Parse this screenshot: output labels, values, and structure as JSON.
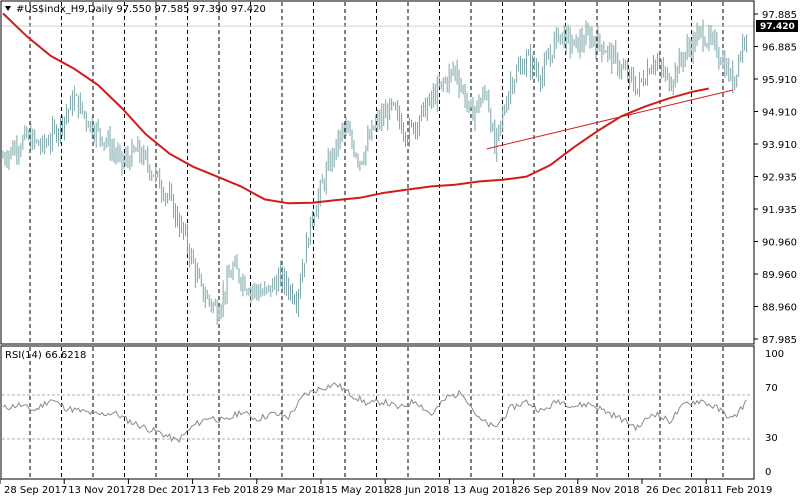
{
  "header": {
    "symbol_line": "#US$indx_H9,Daily  97.550 97.585 97.390 97.420"
  },
  "rsi_panel": {
    "label": "RSI(14) 66.6218",
    "current": 66.6218,
    "levels": [
      70,
      30
    ],
    "scale": [
      "100",
      "70",
      "30",
      "0"
    ]
  },
  "colors": {
    "background": "#ffffff",
    "bars": "#7aa5a8",
    "moving_average": "#d11c1c",
    "trendline": "#d11c1c",
    "rsi_line": "#8a8a8a",
    "grid": "#000000",
    "level_lines": "#b0b0b0"
  },
  "chart_data": {
    "type": "bar",
    "title": "#US$indx_H9,Daily",
    "last_ohlc": {
      "open": 97.55,
      "high": 97.585,
      "low": 97.39,
      "close": 97.42
    },
    "current_price_label": "97.420",
    "ylim": [
      87.6,
      98.05
    ],
    "y_ticks": [
      "97.885",
      "96.885",
      "95.910",
      "94.910",
      "93.910",
      "92.935",
      "91.935",
      "90.960",
      "89.960",
      "88.960",
      "87.985"
    ],
    "x_ticks": [
      "28 Sep 2017",
      "13 Nov 2017",
      "28 Dec 2017",
      "13 Feb 2018",
      "29 Mar 2018",
      "15 May 2018",
      "28 Jun 2018",
      "13 Aug 2018",
      "26 Sep 2018",
      "9 Nov 2018",
      "26 Dec 2018",
      "11 Feb 2019"
    ],
    "price_path": [
      [
        0,
        93.3
      ],
      [
        3,
        93.9
      ],
      [
        5,
        93.6
      ],
      [
        7,
        94.2
      ],
      [
        9,
        95.1
      ],
      [
        11,
        94.3
      ],
      [
        13,
        93.8
      ],
      [
        15,
        93.1
      ],
      [
        17,
        93.5
      ],
      [
        19,
        92.8
      ],
      [
        21,
        92.0
      ],
      [
        23,
        90.8
      ],
      [
        25,
        89.2
      ],
      [
        27,
        88.6
      ],
      [
        29,
        89.9
      ],
      [
        31,
        89.3
      ],
      [
        33,
        89.1
      ],
      [
        35,
        89.6
      ],
      [
        37,
        89.0
      ],
      [
        39,
        91.5
      ],
      [
        41,
        93.0
      ],
      [
        43,
        94.2
      ],
      [
        45,
        93.2
      ],
      [
        47,
        94.3
      ],
      [
        49,
        94.8
      ],
      [
        51,
        94.0
      ],
      [
        53,
        94.7
      ],
      [
        55,
        95.4
      ],
      [
        57,
        96.0
      ],
      [
        59,
        94.6
      ],
      [
        61,
        95.3
      ],
      [
        62,
        93.5
      ],
      [
        64,
        95.6
      ],
      [
        66,
        96.3
      ],
      [
        68,
        95.8
      ],
      [
        70,
        97.1
      ],
      [
        72,
        96.7
      ],
      [
        74,
        97.0
      ],
      [
        76,
        96.6
      ],
      [
        78,
        96.0
      ],
      [
        80,
        95.4
      ],
      [
        82,
        96.3
      ],
      [
        84,
        95.6
      ],
      [
        86,
        96.5
      ],
      [
        88,
        97.1
      ],
      [
        90,
        96.6
      ],
      [
        92,
        95.6
      ],
      [
        94,
        97.5
      ]
    ],
    "series": [
      {
        "type": "line",
        "points": [
          [
            0,
            97.7
          ],
          [
            3,
            97.0
          ],
          [
            6,
            96.4
          ],
          [
            9,
            96.0
          ],
          [
            12,
            95.5
          ],
          [
            15,
            94.8
          ],
          [
            18,
            94.0
          ],
          [
            21,
            93.4
          ],
          [
            24,
            93.0
          ],
          [
            27,
            92.7
          ],
          [
            30,
            92.4
          ],
          [
            33,
            92.0
          ],
          [
            36,
            91.88
          ],
          [
            39,
            91.9
          ],
          [
            42,
            91.98
          ],
          [
            45,
            92.05
          ],
          [
            48,
            92.2
          ],
          [
            51,
            92.3
          ],
          [
            54,
            92.4
          ],
          [
            57,
            92.45
          ],
          [
            60,
            92.55
          ],
          [
            63,
            92.6
          ],
          [
            66,
            92.7
          ],
          [
            69,
            93.05
          ],
          [
            72,
            93.6
          ],
          [
            75,
            94.1
          ],
          [
            78,
            94.55
          ],
          [
            81,
            94.85
          ],
          [
            84,
            95.1
          ],
          [
            87,
            95.3
          ],
          [
            89,
            95.4
          ]
        ]
      },
      {
        "type": "trendline",
        "points": [
          [
            61,
            93.55
          ],
          [
            92,
            95.35
          ]
        ]
      }
    ],
    "rsi_values": [
      [
        0,
        58
      ],
      [
        2,
        61
      ],
      [
        4,
        56
      ],
      [
        6,
        66
      ],
      [
        8,
        58
      ],
      [
        10,
        55
      ],
      [
        12,
        52
      ],
      [
        14,
        54
      ],
      [
        16,
        46
      ],
      [
        18,
        40
      ],
      [
        20,
        35
      ],
      [
        22,
        28
      ],
      [
        24,
        42
      ],
      [
        26,
        50
      ],
      [
        28,
        46
      ],
      [
        30,
        55
      ],
      [
        32,
        48
      ],
      [
        34,
        53
      ],
      [
        36,
        50
      ],
      [
        38,
        70
      ],
      [
        40,
        76
      ],
      [
        42,
        80
      ],
      [
        44,
        70
      ],
      [
        46,
        62
      ],
      [
        48,
        64
      ],
      [
        50,
        58
      ],
      [
        52,
        65
      ],
      [
        54,
        52
      ],
      [
        56,
        68
      ],
      [
        58,
        72
      ],
      [
        60,
        48
      ],
      [
        62,
        40
      ],
      [
        64,
        58
      ],
      [
        66,
        64
      ],
      [
        68,
        55
      ],
      [
        70,
        65
      ],
      [
        72,
        60
      ],
      [
        74,
        62
      ],
      [
        76,
        55
      ],
      [
        78,
        48
      ],
      [
        80,
        40
      ],
      [
        82,
        54
      ],
      [
        84,
        46
      ],
      [
        86,
        62
      ],
      [
        88,
        65
      ],
      [
        90,
        58
      ],
      [
        92,
        48
      ],
      [
        94,
        66.6
      ]
    ]
  }
}
